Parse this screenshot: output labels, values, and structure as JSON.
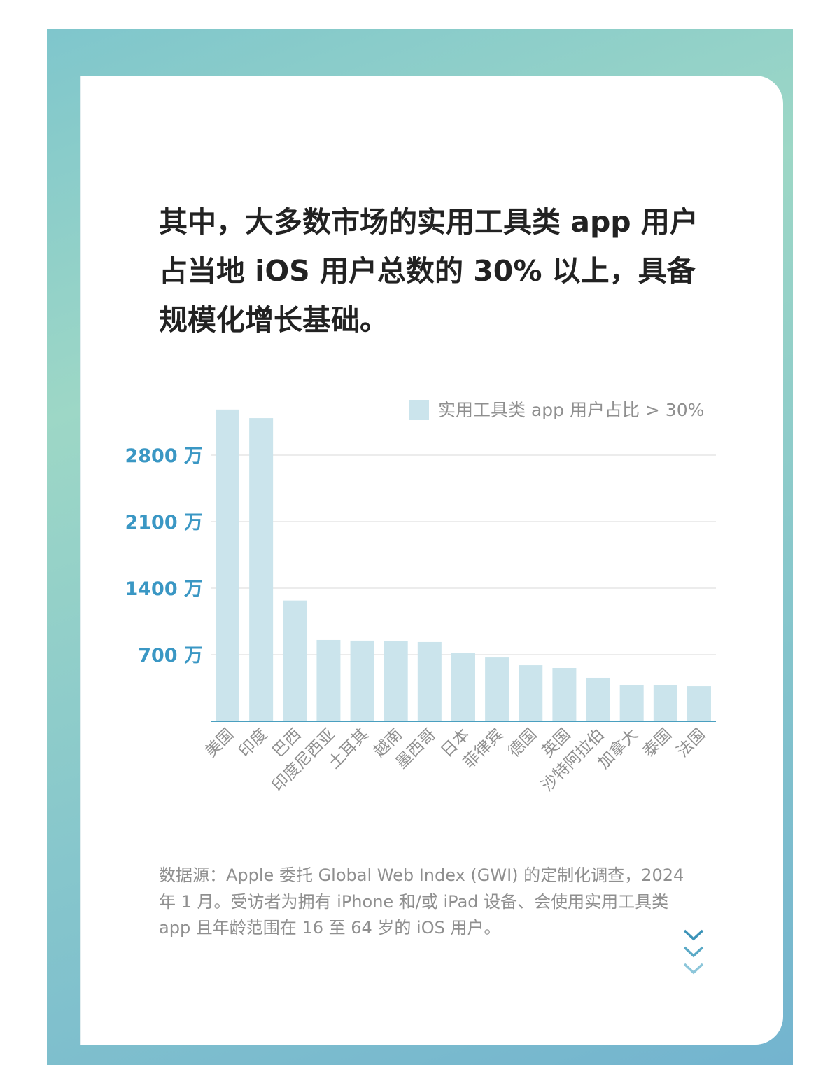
{
  "headline": "其中，大多数市场的实用工具类 app 用户占当地 iOS 用户总数的 30% 以上，具备规模化增长基础。",
  "source_note": "数据源：Apple 委托 Global Web Index (GWI) 的定制化调查，2024 年 1 月。受访者为拥有 iPhone 和/或 iPad 设备、会使用实用工具类 app 且年龄范围在 16 至 64 岁的 iOS 用户。",
  "scroll_hint_icon": "triple-chevron-down-icon",
  "colors": {
    "bar": "#cbe4ec",
    "axis_label": "#3a97c4",
    "baseline": "#4a9fbf",
    "frame": "#8ccfc8"
  },
  "chart_data": {
    "type": "bar",
    "title": "",
    "xlabel": "",
    "ylabel": "",
    "legend": {
      "label": "实用工具类 app 用户占比 > 30%",
      "placement": "top-right"
    },
    "categories": [
      "美国",
      "印度",
      "巴西",
      "印度尼西亚",
      "土耳其",
      "越南",
      "墨西哥",
      "日本",
      "菲律宾",
      "德国",
      "英国",
      "沙特阿拉伯",
      "加拿大",
      "泰国",
      "法国"
    ],
    "series": [
      {
        "values": [
          3280,
          3190,
          1270,
          855,
          848,
          840,
          833,
          722,
          670,
          589,
          560,
          457,
          376,
          376,
          368
        ]
      }
    ],
    "yticks": [
      700,
      1400,
      2100,
      2800
    ],
    "ytick_labels": [
      "700 万",
      "1400 万",
      "2100 万",
      "2800 万"
    ],
    "ylim": [
      0,
      3300
    ],
    "grid": true
  }
}
